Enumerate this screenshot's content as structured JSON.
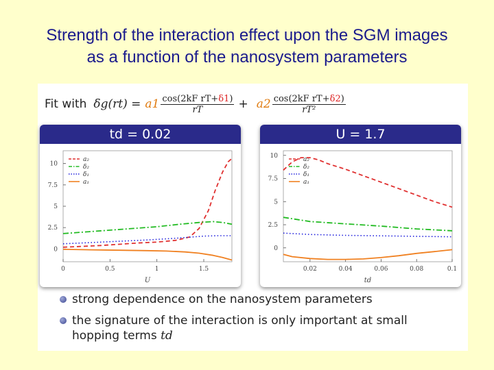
{
  "slide": {
    "title_line1": "Strength of the interaction effect upon the SGM images",
    "title_line2": "as a function of the nanosystem parameters"
  },
  "formula": {
    "fit_label": "Fit with",
    "lhs": "δg(rt) =",
    "coef1": "a1",
    "num1_a": "cos(2kF rT+",
    "num1_delta": "δ1",
    "num1_b": ")",
    "den1": "rT",
    "plus": "+",
    "coef2": "a2",
    "num2_a": "cos(2kF rT+",
    "num2_delta": "δ2",
    "num2_b": ")",
    "den2": "rT²"
  },
  "bullets": [
    {
      "text": "strong dependence on the nanosystem parameters"
    },
    {
      "text": "the signature of the interaction is only important at small",
      "text2": "hopping terms",
      "symbol": "td"
    }
  ],
  "colors": {
    "a2": "#e03030",
    "d2": "#22bb22",
    "d1": "#2222dd",
    "a1": "#f08020",
    "header": "#2a2a8a",
    "title": "#1a1a8c"
  },
  "chart_data": [
    {
      "type": "line",
      "header": "td = 0.02",
      "xlabel": "U",
      "ylabel": "",
      "xlim": [
        0,
        1.8
      ],
      "ylim": [
        -1.5,
        11.5
      ],
      "xticks": [
        0,
        0.5,
        1,
        1.5
      ],
      "xtick_labels": [
        "0",
        "0.5",
        "1",
        "1.5"
      ],
      "yticks": [
        0,
        2.5,
        5,
        7.5,
        10
      ],
      "ytick_labels": [
        "0",
        "2.5",
        "5",
        "7.5",
        "10"
      ],
      "legend_position": "top-left",
      "series": [
        {
          "name": "a2",
          "label": "a₂",
          "style": "dashed",
          "color": "#e03030",
          "x": [
            0,
            0.2,
            0.4,
            0.6,
            0.8,
            1.0,
            1.2,
            1.35,
            1.45,
            1.55,
            1.62,
            1.7,
            1.76,
            1.8
          ],
          "y": [
            0.2,
            0.3,
            0.4,
            0.55,
            0.7,
            0.8,
            1.0,
            1.4,
            2.4,
            4.5,
            6.8,
            9.0,
            10.2,
            10.6
          ]
        },
        {
          "name": "d2",
          "label": "δ₂",
          "style": "dashdot",
          "color": "#22bb22",
          "x": [
            0,
            0.25,
            0.5,
            0.75,
            1.0,
            1.25,
            1.45,
            1.6,
            1.7,
            1.8
          ],
          "y": [
            1.8,
            2.0,
            2.2,
            2.4,
            2.6,
            2.9,
            3.1,
            3.2,
            3.1,
            2.9
          ]
        },
        {
          "name": "d1",
          "label": "δ₁",
          "style": "dotted",
          "color": "#2222dd",
          "x": [
            0,
            0.3,
            0.6,
            0.9,
            1.2,
            1.5,
            1.65,
            1.8
          ],
          "y": [
            0.6,
            0.75,
            0.9,
            1.05,
            1.25,
            1.5,
            1.55,
            1.55
          ]
        },
        {
          "name": "a1",
          "label": "a₁",
          "style": "solid",
          "color": "#f08020",
          "x": [
            0,
            0.3,
            0.6,
            0.9,
            1.1,
            1.3,
            1.45,
            1.6,
            1.7,
            1.8
          ],
          "y": [
            -0.05,
            -0.1,
            -0.15,
            -0.2,
            -0.25,
            -0.35,
            -0.5,
            -0.75,
            -1.0,
            -1.3
          ]
        }
      ]
    },
    {
      "type": "line",
      "header": "U = 1.7",
      "xlabel": "td",
      "ylabel": "",
      "xlim": [
        0.005,
        0.1
      ],
      "ylim": [
        -1.5,
        10.5
      ],
      "xticks": [
        0.02,
        0.04,
        0.06,
        0.08,
        0.1
      ],
      "xtick_labels": [
        "0.02",
        "0.04",
        "0.06",
        "0.08",
        "0.1"
      ],
      "yticks": [
        0,
        2.5,
        5,
        7.5,
        10
      ],
      "ytick_labels": [
        "0",
        "2.5",
        "5",
        "7.5",
        "10"
      ],
      "legend_position": "top-left",
      "series": [
        {
          "name": "a2",
          "label": "a₂",
          "style": "dashed",
          "color": "#e03030",
          "x": [
            0.005,
            0.01,
            0.015,
            0.02,
            0.025,
            0.03,
            0.04,
            0.05,
            0.06,
            0.07,
            0.08,
            0.09,
            0.1
          ],
          "y": [
            8.4,
            9.3,
            9.75,
            9.75,
            9.5,
            9.1,
            8.5,
            7.8,
            7.1,
            6.4,
            5.7,
            5.0,
            4.4
          ]
        },
        {
          "name": "d2",
          "label": "δ₂",
          "style": "dashdot",
          "color": "#22bb22",
          "x": [
            0.005,
            0.02,
            0.04,
            0.06,
            0.08,
            0.1
          ],
          "y": [
            3.3,
            2.85,
            2.6,
            2.35,
            2.05,
            1.85
          ]
        },
        {
          "name": "d1",
          "label": "δ₁",
          "style": "dotted",
          "color": "#2222dd",
          "x": [
            0.005,
            0.02,
            0.04,
            0.06,
            0.08,
            0.1
          ],
          "y": [
            1.6,
            1.45,
            1.35,
            1.3,
            1.25,
            1.2
          ]
        },
        {
          "name": "a1",
          "label": "a₁",
          "style": "solid",
          "color": "#f08020",
          "x": [
            0.005,
            0.01,
            0.02,
            0.03,
            0.04,
            0.05,
            0.06,
            0.07,
            0.08,
            0.09,
            0.1
          ],
          "y": [
            -0.7,
            -0.95,
            -1.15,
            -1.25,
            -1.25,
            -1.2,
            -1.05,
            -0.85,
            -0.6,
            -0.4,
            -0.2
          ]
        }
      ]
    }
  ]
}
